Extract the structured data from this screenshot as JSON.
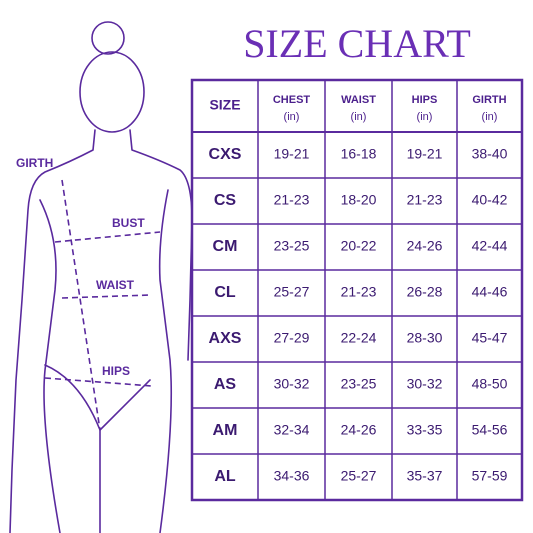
{
  "title": "SIZE CHART",
  "figure": {
    "labels": {
      "girth": "GIRTH",
      "bust": "BUST",
      "waist": "WAIST",
      "hips": "HIPS"
    }
  },
  "table": {
    "header": [
      {
        "name": "SIZE"
      },
      {
        "name": "CHEST",
        "unit": "(in)"
      },
      {
        "name": "WAIST",
        "unit": "(in)"
      },
      {
        "name": "HIPS",
        "unit": "(in)"
      },
      {
        "name": "GIRTH",
        "unit": "(in)"
      }
    ],
    "rows": [
      [
        "CXS",
        "19-21",
        "16-18",
        "19-21",
        "38-40"
      ],
      [
        "CS",
        "21-23",
        "18-20",
        "21-23",
        "40-42"
      ],
      [
        "CM",
        "23-25",
        "20-22",
        "24-26",
        "42-44"
      ],
      [
        "CL",
        "25-27",
        "21-23",
        "26-28",
        "44-46"
      ],
      [
        "AXS",
        "27-29",
        "22-24",
        "28-30",
        "45-47"
      ],
      [
        "AS",
        "30-32",
        "23-25",
        "30-32",
        "48-50"
      ],
      [
        "AM",
        "32-34",
        "24-26",
        "33-35",
        "54-56"
      ],
      [
        "AL",
        "34-36",
        "25-27",
        "35-37",
        "57-59"
      ]
    ]
  }
}
